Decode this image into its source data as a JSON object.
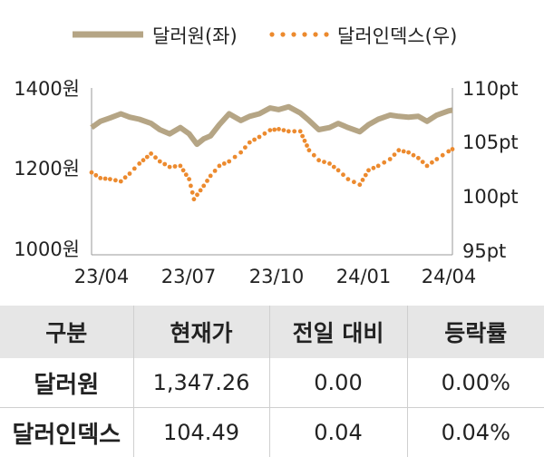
{
  "chart_data": {
    "type": "line",
    "legend": [
      {
        "label": "달러원(좌)",
        "color": "#b5a585",
        "style": "solid"
      },
      {
        "label": "달러인덱스(우)",
        "color": "#ec8a2e",
        "style": "dotted"
      }
    ],
    "legend_position": "top",
    "x_tick_labels": [
      "23/04",
      "23/07",
      "23/10",
      "24/01",
      "24/04"
    ],
    "x_range": [
      "2023-04-01",
      "2024-04-05"
    ],
    "y_left": {
      "ticks": [
        "1400원",
        "1200원",
        "1000원"
      ],
      "range": [
        1000,
        1400
      ],
      "unit": "원"
    },
    "y_right": {
      "ticks": [
        "110pt",
        "105pt",
        "100pt",
        "95pt"
      ],
      "range": [
        95,
        110
      ],
      "unit": "pt"
    },
    "grid": false,
    "series": [
      {
        "name": "달러원(좌)",
        "axis": "left",
        "color": "#b5a585",
        "points": [
          [
            "2023-04-01",
            1305
          ],
          [
            "2023-04-10",
            1320
          ],
          [
            "2023-04-20",
            1328
          ],
          [
            "2023-05-01",
            1338
          ],
          [
            "2023-05-10",
            1330
          ],
          [
            "2023-05-20",
            1325
          ],
          [
            "2023-06-01",
            1315
          ],
          [
            "2023-06-10",
            1300
          ],
          [
            "2023-06-20",
            1290
          ],
          [
            "2023-07-01",
            1305
          ],
          [
            "2023-07-10",
            1290
          ],
          [
            "2023-07-18",
            1265
          ],
          [
            "2023-07-25",
            1278
          ],
          [
            "2023-08-01",
            1285
          ],
          [
            "2023-08-10",
            1312
          ],
          [
            "2023-08-20",
            1338
          ],
          [
            "2023-09-01",
            1322
          ],
          [
            "2023-09-10",
            1332
          ],
          [
            "2023-09-20",
            1338
          ],
          [
            "2023-10-01",
            1352
          ],
          [
            "2023-10-10",
            1348
          ],
          [
            "2023-10-20",
            1355
          ],
          [
            "2023-11-01",
            1340
          ],
          [
            "2023-11-10",
            1322
          ],
          [
            "2023-11-20",
            1300
          ],
          [
            "2023-12-01",
            1305
          ],
          [
            "2023-12-10",
            1315
          ],
          [
            "2023-12-20",
            1305
          ],
          [
            "2024-01-01",
            1295
          ],
          [
            "2024-01-10",
            1312
          ],
          [
            "2024-01-20",
            1325
          ],
          [
            "2024-02-01",
            1335
          ],
          [
            "2024-02-10",
            1332
          ],
          [
            "2024-02-20",
            1330
          ],
          [
            "2024-03-01",
            1332
          ],
          [
            "2024-03-10",
            1320
          ],
          [
            "2024-03-20",
            1335
          ],
          [
            "2024-04-01",
            1345
          ],
          [
            "2024-04-05",
            1347
          ]
        ]
      },
      {
        "name": "달러인덱스(우)",
        "axis": "right",
        "color": "#ec8a2e",
        "points": [
          [
            "2023-04-01",
            102.4
          ],
          [
            "2023-04-10",
            101.9
          ],
          [
            "2023-04-20",
            101.8
          ],
          [
            "2023-05-01",
            101.6
          ],
          [
            "2023-05-10",
            102.3
          ],
          [
            "2023-05-20",
            103.2
          ],
          [
            "2023-06-01",
            104.1
          ],
          [
            "2023-06-10",
            103.4
          ],
          [
            "2023-06-20",
            102.9
          ],
          [
            "2023-07-01",
            103.0
          ],
          [
            "2023-07-10",
            101.8
          ],
          [
            "2023-07-15",
            100.0
          ],
          [
            "2023-07-25",
            101.2
          ],
          [
            "2023-08-01",
            102.1
          ],
          [
            "2023-08-10",
            103.0
          ],
          [
            "2023-08-20",
            103.4
          ],
          [
            "2023-09-01",
            104.2
          ],
          [
            "2023-09-10",
            105.1
          ],
          [
            "2023-09-20",
            105.6
          ],
          [
            "2023-10-01",
            106.2
          ],
          [
            "2023-10-10",
            106.3
          ],
          [
            "2023-10-20",
            106.1
          ],
          [
            "2023-11-01",
            106.1
          ],
          [
            "2023-11-10",
            104.4
          ],
          [
            "2023-11-20",
            103.5
          ],
          [
            "2023-12-01",
            103.2
          ],
          [
            "2023-12-10",
            102.6
          ],
          [
            "2023-12-20",
            101.8
          ],
          [
            "2024-01-01",
            101.3
          ],
          [
            "2024-01-10",
            102.6
          ],
          [
            "2024-01-20",
            103.0
          ],
          [
            "2024-02-01",
            103.6
          ],
          [
            "2024-02-10",
            104.4
          ],
          [
            "2024-02-20",
            104.2
          ],
          [
            "2024-03-01",
            103.7
          ],
          [
            "2024-03-10",
            103.0
          ],
          [
            "2024-03-20",
            103.6
          ],
          [
            "2024-04-01",
            104.3
          ],
          [
            "2024-04-05",
            104.5
          ]
        ]
      }
    ]
  },
  "table": {
    "headers": [
      "구분",
      "현재가",
      "전일 대비",
      "등락률"
    ],
    "rows": [
      [
        "달러원",
        "1,347.26",
        "0.00",
        "0.00%"
      ],
      [
        "달러인덱스",
        "104.49",
        "0.04",
        "0.04%"
      ]
    ]
  }
}
